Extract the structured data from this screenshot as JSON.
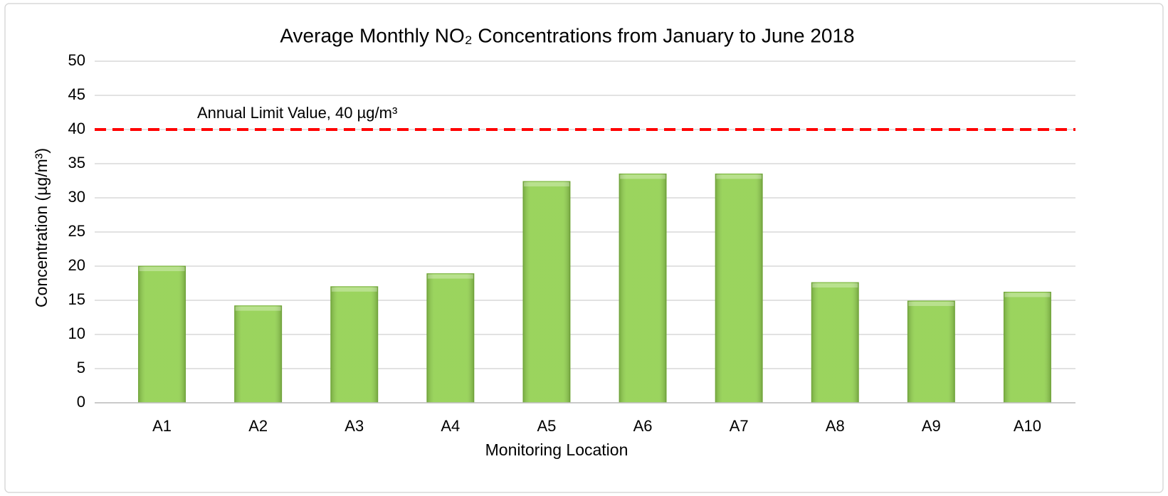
{
  "chart_data": {
    "type": "bar",
    "title": "Average Monthly NO₂ Concentrations from January to June 2018",
    "x_label": "Monitoring Location",
    "y_label": "Concentration (µg/m³)",
    "categories": [
      "A1",
      "A2",
      "A3",
      "A4",
      "A5",
      "A6",
      "A7",
      "A8",
      "A9",
      "A10"
    ],
    "values": [
      20,
      14.2,
      17,
      18.9,
      32.4,
      33.5,
      33.5,
      17.6,
      14.9,
      16.2
    ],
    "color": "#92d050",
    "ylim": [
      0,
      50
    ],
    "yticks": [
      0,
      5,
      10,
      15,
      20,
      25,
      30,
      35,
      40,
      45,
      50
    ],
    "grid": true,
    "reference_line": {
      "value": 40,
      "label": "Annual Limit Value, 40 µg/m³",
      "color": "#ff0000"
    }
  }
}
